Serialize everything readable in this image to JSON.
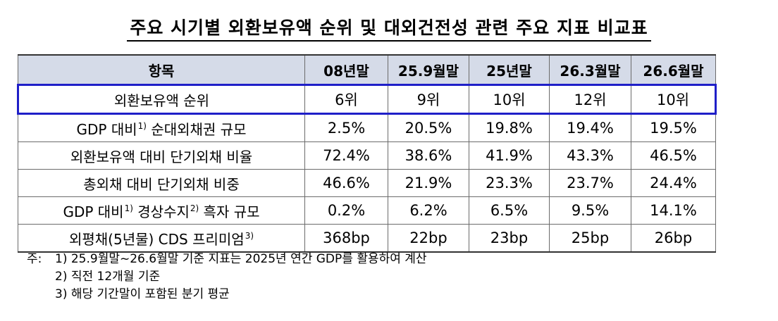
{
  "title": "주요 시기별 외환보유액 순위 및 대외건전성 관련 주요 지표 비교표",
  "table": {
    "headers": [
      "항목",
      "08년말",
      "25.9월말",
      "25년말",
      "26.3월말",
      "26.6월말"
    ],
    "rows": [
      {
        "label": "외환보유액 순위",
        "sup": "",
        "label_tail": "",
        "sup2": "",
        "values": [
          "6위",
          "9위",
          "10위",
          "12위",
          "10위"
        ]
      },
      {
        "label": "GDP 대비",
        "sup": "1)",
        "label_tail": " 순대외채권 규모",
        "sup2": "",
        "values": [
          "2.5%",
          "20.5%",
          "19.8%",
          "19.4%",
          "19.5%"
        ]
      },
      {
        "label": "외환보유액 대비 단기외채 비율",
        "sup": "",
        "label_tail": "",
        "sup2": "",
        "values": [
          "72.4%",
          "38.6%",
          "41.9%",
          "43.3%",
          "46.5%"
        ]
      },
      {
        "label": "총외채 대비 단기외채 비중",
        "sup": "",
        "label_tail": "",
        "sup2": "",
        "values": [
          "46.6%",
          "21.9%",
          "23.3%",
          "23.7%",
          "24.4%"
        ]
      },
      {
        "label": "GDP 대비",
        "sup": "1)",
        "label_tail": " 경상수지",
        "sup2": "2)",
        "label_tail2": " 흑자 규모",
        "values": [
          "0.2%",
          "6.2%",
          "6.5%",
          "9.5%",
          "14.1%"
        ]
      },
      {
        "label": "외평채(5년물) CDS 프리미엄",
        "sup": "3)",
        "label_tail": "",
        "sup2": "",
        "values": [
          "368bp",
          "22bp",
          "23bp",
          "25bp",
          "26bp"
        ]
      }
    ]
  },
  "notes": {
    "prefix": "주:",
    "items": [
      "1) 25.9월말~26.6월말 기준 지표는 2025년 연간 GDP를 활용하여 계산",
      "2) 직전 12개월 기준",
      "3) 해당 기간말이 포함된 분기 평균"
    ]
  },
  "colors": {
    "header_bg": "#d5dbe8",
    "highlight_border": "#1f1fc8"
  }
}
